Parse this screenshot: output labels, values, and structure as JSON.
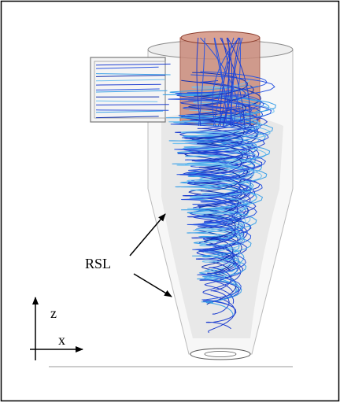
{
  "labels": {
    "rsl": "RSL",
    "axis_z": "z",
    "axis_x": "x"
  }
}
